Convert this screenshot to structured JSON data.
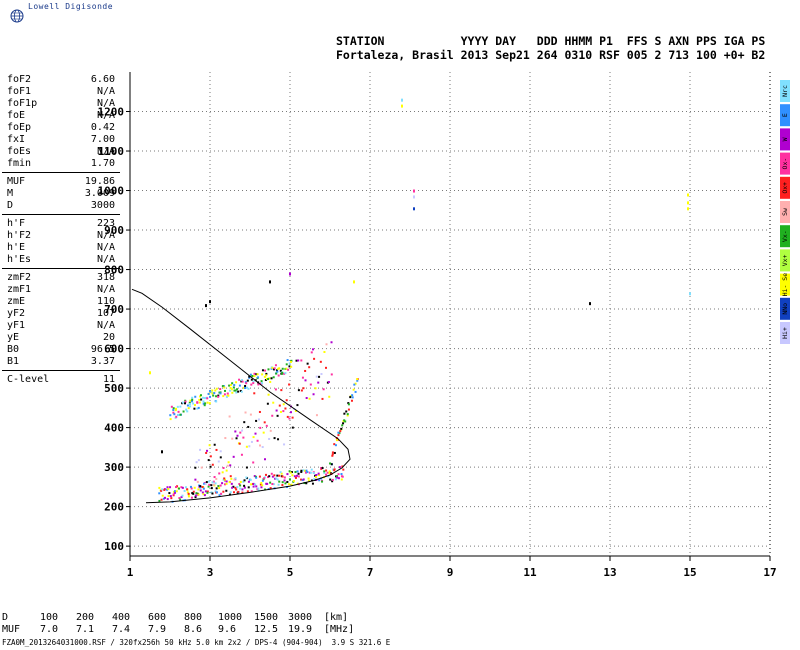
{
  "brand": {
    "name": "Lowell Digisonde",
    "logo_icon": "globe-icon"
  },
  "header": {
    "line1": "STATION           YYYY DAY   DDD HHMM P1  FFS S AXN PPS IGA PS",
    "line2": "Fortaleza, Brasil 2013 Sep21 264 0310 RSF 005 2 713 100 +0+ B2"
  },
  "params": [
    {
      "group": 0,
      "key": "foF2",
      "value": "6.60"
    },
    {
      "group": 0,
      "key": "foF1",
      "value": "N/A"
    },
    {
      "group": 0,
      "key": "foF1p",
      "value": "N/A"
    },
    {
      "group": 0,
      "key": "foE",
      "value": "N/A"
    },
    {
      "group": 0,
      "key": "foEp",
      "value": "0.42"
    },
    {
      "group": 0,
      "key": "fxI",
      "value": "7.00"
    },
    {
      "group": 0,
      "key": "foEs",
      "value": "N/A"
    },
    {
      "group": 0,
      "key": "fmin",
      "value": "1.70"
    },
    {
      "group": 1,
      "key": "MUF",
      "value": "19.86"
    },
    {
      "group": 1,
      "key": "M",
      "value": "3.009"
    },
    {
      "group": 1,
      "key": "D",
      "value": "3000"
    },
    {
      "group": 2,
      "key": "h'F",
      "value": "223"
    },
    {
      "group": 2,
      "key": "h'F2",
      "value": "N/A"
    },
    {
      "group": 2,
      "key": "h'E",
      "value": "N/A"
    },
    {
      "group": 2,
      "key": "h'Es",
      "value": "N/A"
    },
    {
      "group": 3,
      "key": "zmF2",
      "value": "318"
    },
    {
      "group": 3,
      "key": "zmF1",
      "value": "N/A"
    },
    {
      "group": 3,
      "key": "zmE",
      "value": "110"
    },
    {
      "group": 3,
      "key": "yF2",
      "value": "107"
    },
    {
      "group": 3,
      "key": "yF1",
      "value": "N/A"
    },
    {
      "group": 3,
      "key": "yE",
      "value": "20"
    },
    {
      "group": 3,
      "key": "B0",
      "value": "96.5"
    },
    {
      "group": 3,
      "key": "B1",
      "value": "3.37"
    },
    {
      "group": 4,
      "key": "C-level",
      "value": "11"
    }
  ],
  "chart_data": {
    "type": "scatter",
    "title": "",
    "xlabel": "",
    "ylabel": "",
    "xlim": [
      1,
      17
    ],
    "ylim": [
      75,
      1300
    ],
    "x_ticks": [
      1,
      3,
      5,
      7,
      9,
      11,
      13,
      15,
      17
    ],
    "y_ticks": [
      100,
      200,
      300,
      400,
      500,
      600,
      700,
      800,
      900,
      1000,
      1100,
      1200
    ],
    "grid": "dotted",
    "legend": {
      "placement": "right",
      "entries": [
        {
          "label": "Nrc",
          "color": "#80e0ff"
        },
        {
          "label": "E",
          "color": "#3090ff"
        },
        {
          "label": "W",
          "color": "#b000d0"
        },
        {
          "label": "Ox-",
          "color": "#ff30a0"
        },
        {
          "label": "Ox+",
          "color": "#ff2020"
        },
        {
          "label": "Sw",
          "color": "#ffb0b0"
        },
        {
          "label": "Vx-",
          "color": "#20b020"
        },
        {
          "label": "Vx+",
          "color": "#b0ff40"
        },
        {
          "label": "Hi- Se",
          "color": "#ffff00"
        },
        {
          "label": "NNo",
          "color": "#1040c0"
        },
        {
          "label": "Hi+",
          "color": "#c8c8ff"
        }
      ]
    },
    "profile_curve": {
      "color": "#000000",
      "points": [
        [
          1.4,
          210
        ],
        [
          2.0,
          212
        ],
        [
          3.0,
          222
        ],
        [
          4.0,
          236
        ],
        [
          5.0,
          252
        ],
        [
          5.6,
          266
        ],
        [
          6.0,
          280
        ],
        [
          6.3,
          298
        ],
        [
          6.5,
          320
        ],
        [
          6.45,
          345
        ],
        [
          6.2,
          372
        ],
        [
          5.5,
          420
        ],
        [
          4.5,
          490
        ],
        [
          3.5,
          570
        ],
        [
          2.5,
          650
        ],
        [
          1.8,
          705
        ],
        [
          1.3,
          740
        ],
        [
          1.05,
          750
        ]
      ]
    },
    "trace_segments": [
      {
        "name": "o-trace-lower",
        "x0": 1.7,
        "x1": 6.3,
        "y0": 230,
        "y1": 290,
        "scatter": 40,
        "density": 3,
        "colors": [
          "#000000",
          "#ff2020",
          "#3090ff",
          "#b000d0",
          "#ff30a0",
          "#ffff00",
          "#80e0ff",
          "#20b020"
        ]
      },
      {
        "name": "o-trace-upper",
        "x0": 2.0,
        "x1": 5.0,
        "y0": 440,
        "y1": 560,
        "scatter": 35,
        "density": 3,
        "colors": [
          "#000000",
          "#3090ff",
          "#ffff00",
          "#80e0ff",
          "#ff30a0",
          "#20b020"
        ]
      },
      {
        "name": "spread-f",
        "x0": 2.6,
        "x1": 6.0,
        "y0": 260,
        "y1": 560,
        "scatter": 170,
        "density": 2,
        "colors": [
          "#b000d0",
          "#ff30a0",
          "#ffb0b0",
          "#ff2020",
          "#000000",
          "#c8c8ff",
          "#ffff00"
        ]
      },
      {
        "name": "critical-rise",
        "x0": 6.0,
        "x1": 6.65,
        "y0": 320,
        "y1": 520,
        "scatter": 25,
        "density": 3,
        "colors": [
          "#000000",
          "#20b020",
          "#ffff00",
          "#ff2020",
          "#3090ff"
        ]
      }
    ],
    "isolated_points": [
      {
        "x": 2.9,
        "y": 710,
        "color": "#000000"
      },
      {
        "x": 3.0,
        "y": 720,
        "color": "#000000"
      },
      {
        "x": 4.5,
        "y": 770,
        "color": "#000000"
      },
      {
        "x": 5.0,
        "y": 790,
        "color": "#b000d0"
      },
      {
        "x": 1.8,
        "y": 340,
        "color": "#000000"
      },
      {
        "x": 1.5,
        "y": 540,
        "color": "#ffff00"
      },
      {
        "x": 6.6,
        "y": 770,
        "color": "#ffff00"
      },
      {
        "x": 7.8,
        "y": 1230,
        "color": "#80e0ff"
      },
      {
        "x": 7.8,
        "y": 1215,
        "color": "#ffff00"
      },
      {
        "x": 8.1,
        "y": 1000,
        "color": "#ff30a0"
      },
      {
        "x": 8.1,
        "y": 985,
        "color": "#c8c8ff"
      },
      {
        "x": 8.1,
        "y": 955,
        "color": "#1040c0"
      },
      {
        "x": 12.5,
        "y": 715,
        "color": "#000000"
      },
      {
        "x": 14.95,
        "y": 990,
        "color": "#ffff00"
      },
      {
        "x": 14.95,
        "y": 970,
        "color": "#ffff00"
      },
      {
        "x": 14.95,
        "y": 955,
        "color": "#ffff00"
      },
      {
        "x": 15.0,
        "y": 740,
        "color": "#80e0ff"
      }
    ]
  },
  "muf_table": {
    "d_label": "D",
    "d_values": [
      "100",
      "200",
      "400",
      "600",
      "800",
      "1000",
      "1500",
      "3000"
    ],
    "d_unit": "[km]",
    "muf_label": "MUF",
    "muf_values": [
      "7.0",
      "7.1",
      "7.4",
      "7.9",
      "8.6",
      "9.6",
      "12.5",
      "19.9"
    ],
    "muf_unit": "[MHz]"
  },
  "footer": "FZA0M_2013264031000.RSF / 320fx256h 50 kHz 5.0 km 2x2 / DPS-4 (904-904)  3.9 S 321.6 E"
}
